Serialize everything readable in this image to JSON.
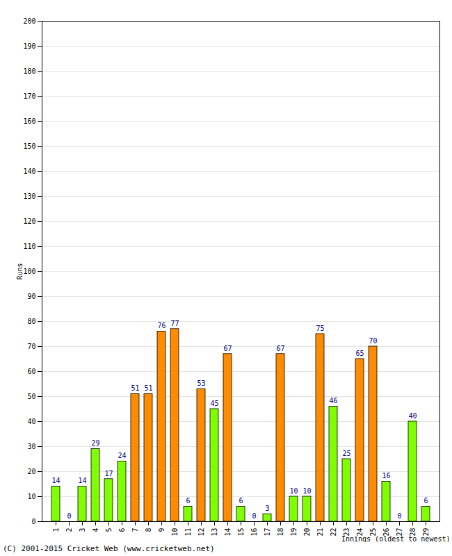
{
  "chart_data": {
    "type": "bar",
    "x_label": "Innings (oldest to newest)",
    "y_label": "Runs",
    "caption": "(C) 2001-2015 Cricket Web (www.cricketweb.net)",
    "categories": [
      "1",
      "2",
      "3",
      "4",
      "5",
      "6",
      "7",
      "8",
      "9",
      "10",
      "11",
      "12",
      "13",
      "14",
      "15",
      "16",
      "17",
      "18",
      "19",
      "20",
      "21",
      "22",
      "23",
      "24",
      "25",
      "26",
      "27",
      "28",
      "29"
    ],
    "values": [
      14,
      0,
      14,
      29,
      17,
      24,
      51,
      51,
      76,
      77,
      6,
      53,
      45,
      67,
      6,
      0,
      3,
      67,
      10,
      10,
      75,
      46,
      25,
      65,
      70,
      16,
      0,
      40,
      6
    ],
    "colors": [
      "#80ff00",
      "#80ff00",
      "#80ff00",
      "#80ff00",
      "#80ff00",
      "#80ff00",
      "#ff8c00",
      "#ff8c00",
      "#ff8c00",
      "#ff8c00",
      "#80ff00",
      "#ff8c00",
      "#80ff00",
      "#ff8c00",
      "#80ff00",
      "#80ff00",
      "#80ff00",
      "#ff8c00",
      "#80ff00",
      "#80ff00",
      "#ff8c00",
      "#80ff00",
      "#80ff00",
      "#ff8c00",
      "#ff8c00",
      "#80ff00",
      "#80ff00",
      "#80ff00",
      "#80ff00"
    ],
    "ylim": [
      0,
      200
    ],
    "yticks": [
      0,
      10,
      20,
      30,
      40,
      50,
      60,
      70,
      80,
      90,
      100,
      110,
      120,
      130,
      140,
      150,
      160,
      170,
      180,
      190,
      200
    ],
    "grid": true,
    "data_labels": true
  }
}
